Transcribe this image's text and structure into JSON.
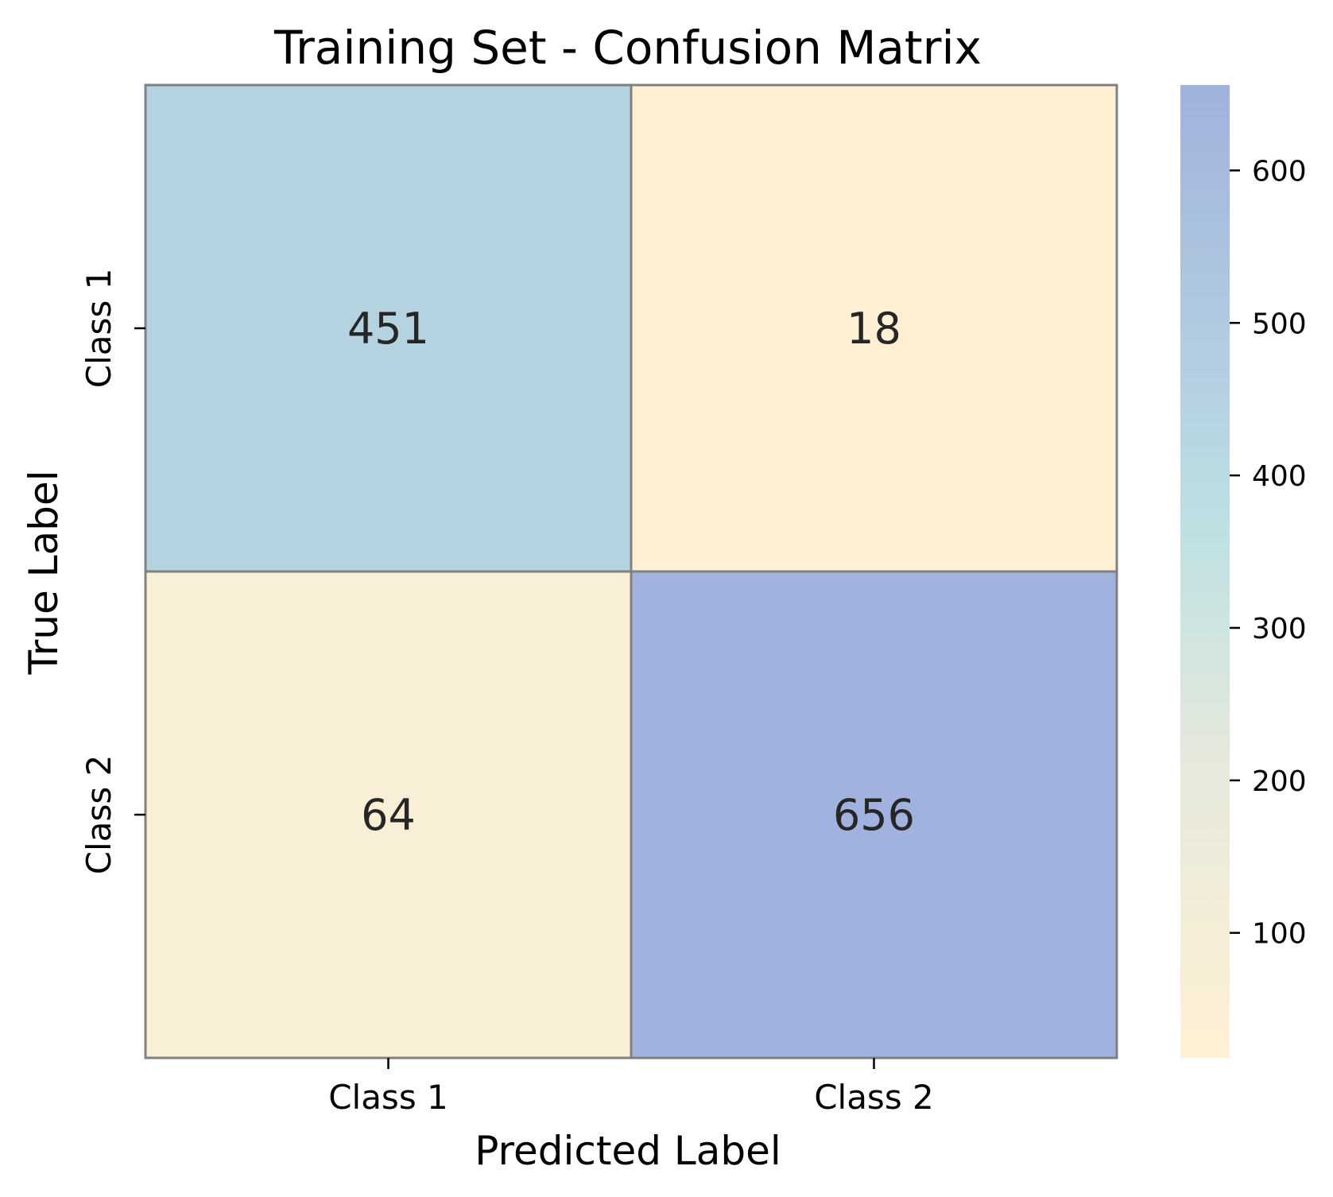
{
  "chart_data": {
    "type": "heatmap",
    "title": "Training Set - Confusion Matrix",
    "xlabel": "Predicted Label",
    "ylabel": "True Label",
    "x_categories": [
      "Class 1",
      "Class 2"
    ],
    "y_categories": [
      "Class 1",
      "Class 2"
    ],
    "values": [
      [
        451,
        18
      ],
      [
        64,
        656
      ]
    ],
    "colorbar": {
      "min": 18,
      "max": 656,
      "ticks": [
        100,
        200,
        300,
        400,
        500,
        600
      ],
      "tick_labels": [
        "100",
        "200",
        "300",
        "400",
        "500",
        "600"
      ],
      "colors": [
        {
          "pos": 0.0,
          "color": "#fff0d4"
        },
        {
          "pos": 0.3,
          "color": "#e6e9dc"
        },
        {
          "pos": 0.55,
          "color": "#bde0e3"
        },
        {
          "pos": 0.72,
          "color": "#b3cde1"
        },
        {
          "pos": 1.0,
          "color": "#a0b2dd"
        }
      ]
    },
    "cell_border_color": "#808080",
    "grid": false
  }
}
